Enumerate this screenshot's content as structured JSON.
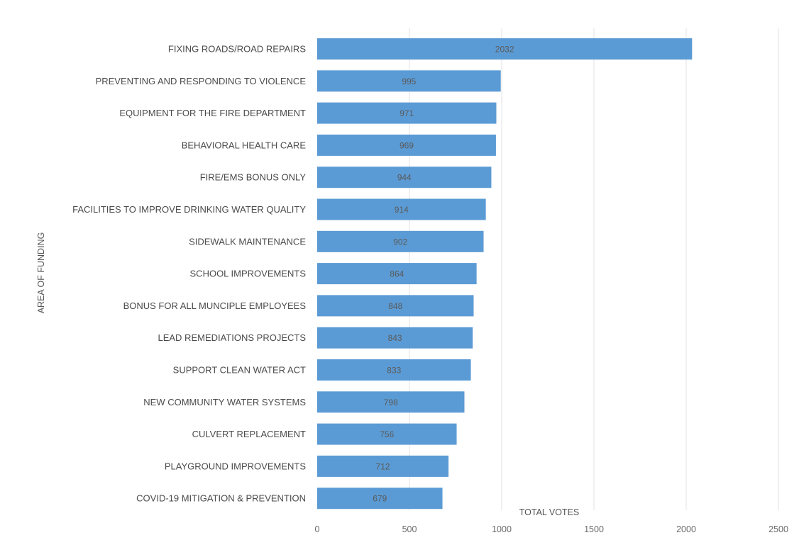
{
  "chart_data": {
    "type": "bar",
    "orientation": "horizontal",
    "title": "",
    "xlabel": "TOTAL VOTES",
    "ylabel": "AREA OF FUNDING",
    "xlim": [
      0,
      2500
    ],
    "xticks": [
      0,
      500,
      1000,
      1500,
      2000,
      2500
    ],
    "grid": true,
    "categories": [
      "FIXING ROADS/ROAD REPAIRS",
      "PREVENTING AND RESPONDING TO VIOLENCE",
      "EQUIPMENT FOR THE FIRE DEPARTMENT",
      "BEHAVIORAL HEALTH CARE",
      "FIRE/EMS BONUS ONLY",
      "FACILITIES TO IMPROVE DRINKING WATER QUALITY",
      "SIDEWALK MAINTENANCE",
      "SCHOOL IMPROVEMENTS",
      "BONUS FOR ALL MUNCIPLE EMPLOYEES",
      "LEAD REMEDIATIONS PROJECTS",
      "SUPPORT CLEAN WATER ACT",
      "NEW COMMUNITY WATER SYSTEMS",
      "CULVERT REPLACEMENT",
      "PLAYGROUND IMPROVEMENTS",
      "COVID-19 MITIGATION & PREVENTION"
    ],
    "values": [
      2032,
      995,
      971,
      969,
      944,
      914,
      902,
      864,
      848,
      843,
      833,
      798,
      756,
      712,
      679
    ],
    "bar_color": "#5b9bd5",
    "label_color": "#5a5a5a",
    "grid_color": "#e2e2e2"
  }
}
